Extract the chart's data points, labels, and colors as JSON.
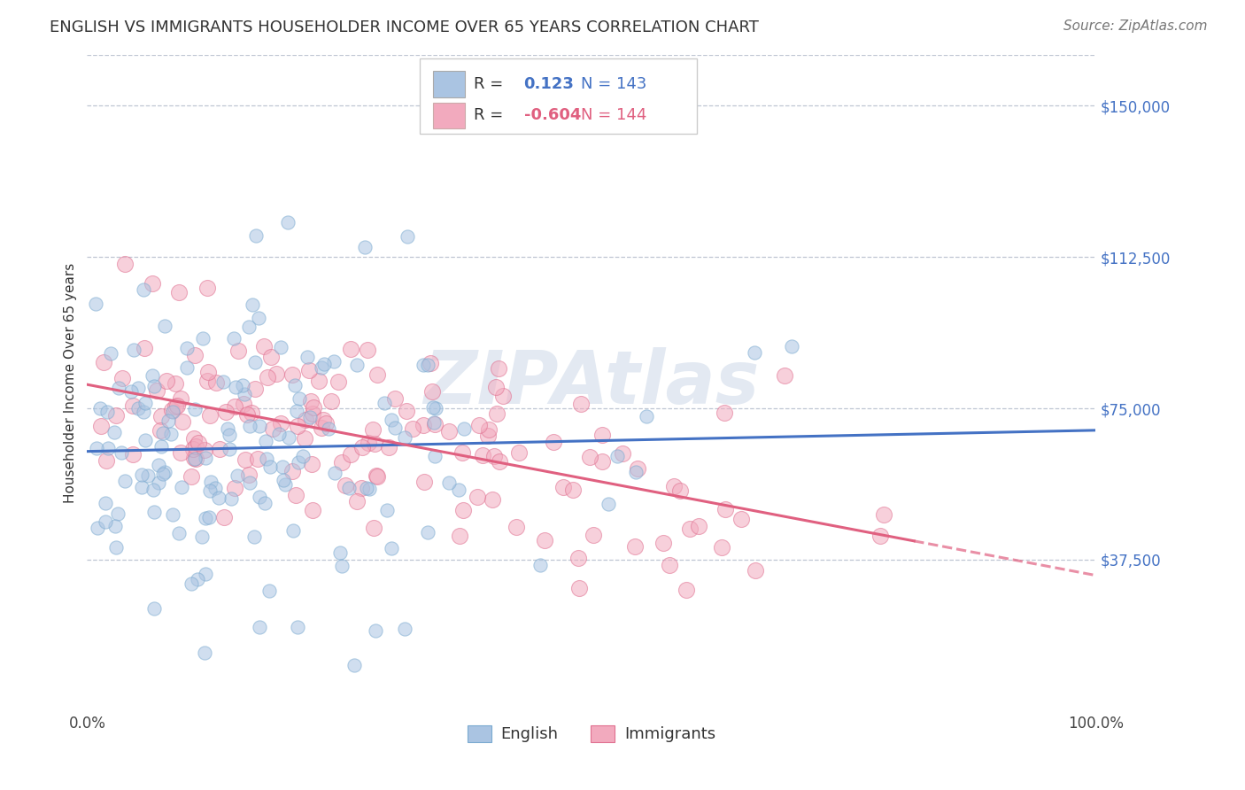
{
  "title": "ENGLISH VS IMMIGRANTS HOUSEHOLDER INCOME OVER 65 YEARS CORRELATION CHART",
  "source": "Source: ZipAtlas.com",
  "ylabel": "Householder Income Over 65 years",
  "xlim": [
    0.0,
    1.0
  ],
  "ylim": [
    0,
    162500
  ],
  "yticks": [
    0,
    37500,
    75000,
    112500,
    150000
  ],
  "ytick_labels": [
    "",
    "$37,500",
    "$75,000",
    "$112,500",
    "$150,000"
  ],
  "xtick_labels": [
    "0.0%",
    "100.0%"
  ],
  "english_R": 0.123,
  "english_N": 143,
  "immigrants_R": -0.604,
  "immigrants_N": 144,
  "english_color": "#aac4e2",
  "english_edge_color": "#7aaad0",
  "english_line_color": "#4472c4",
  "immigrants_color": "#f2aabe",
  "immigrants_edge_color": "#e07090",
  "immigrants_line_color": "#e06080",
  "background_color": "#ffffff",
  "grid_color": "#b0b8c8",
  "watermark": "ZIPAtlas",
  "watermark_color": "#ccd8e8",
  "title_fontsize": 13,
  "axis_label_fontsize": 11,
  "tick_fontsize": 12,
  "legend_fontsize": 13,
  "source_fontsize": 11,
  "dot_size": 120,
  "dot_alpha": 0.55,
  "seed": 42
}
